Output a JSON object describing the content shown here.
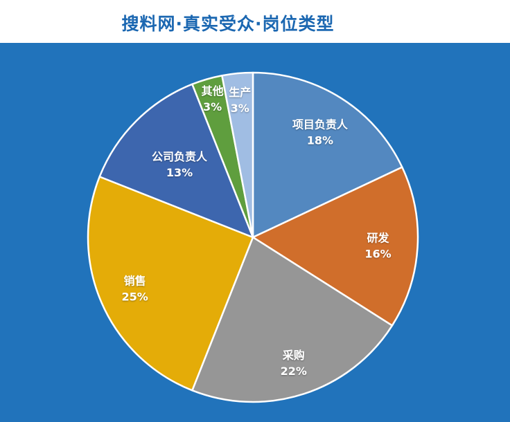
{
  "header": {
    "title": "搜料网·真实受众·岗位类型",
    "title_color": "#1b67b1"
  },
  "chart_data": {
    "type": "pie",
    "title": "搜料网·真实受众·岗位类型",
    "start_angle_deg": 0,
    "direction": "clockwise",
    "value_suffix": "%",
    "background_color": "#2173bb",
    "slice_border_color": "#ffffff",
    "label_color": "#ffffff",
    "legend": "none",
    "series": [
      {
        "label": "项目负责人",
        "value": 18,
        "pct_text": "18%",
        "color": "#5388c0",
        "label_radius": 0.76
      },
      {
        "label": "研发",
        "value": 16,
        "pct_text": "16%",
        "color": "#d06e2b",
        "label_radius": 0.76
      },
      {
        "label": "采购",
        "value": 22,
        "pct_text": "22%",
        "color": "#969696",
        "label_radius": 0.8
      },
      {
        "label": "销售",
        "value": 25,
        "pct_text": "25%",
        "color": "#e4ac08",
        "label_radius": 0.78
      },
      {
        "label": "公司负责人",
        "value": 13,
        "pct_text": "13%",
        "color": "#3d66ae",
        "label_radius": 0.63
      },
      {
        "label": "其他",
        "value": 3,
        "pct_text": "3%",
        "color": "#5f9e3e",
        "label_radius": 0.88
      },
      {
        "label": "生产",
        "value": 3,
        "pct_text": "3%",
        "color": "#a0bde3",
        "label_radius": 0.84
      }
    ]
  }
}
